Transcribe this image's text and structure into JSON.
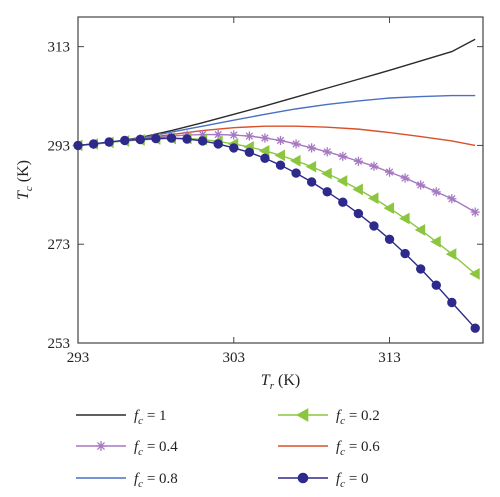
{
  "chart_data": {
    "type": "line",
    "xlabel": {
      "symbol": "T",
      "sub": "r",
      "unit": " (K)"
    },
    "ylabel": {
      "symbol": "T",
      "sub": "c",
      "unit": " (K)"
    },
    "xlim": [
      293,
      319
    ],
    "ylim": [
      253,
      319
    ],
    "xticks": [
      293,
      303,
      313
    ],
    "yticks": [
      253,
      273,
      293,
      313
    ],
    "grid": false,
    "legend_position": "bottom",
    "series": [
      {
        "key": "f1",
        "name_symbol": "f",
        "name_sub": "c",
        "name_value": " = 1",
        "color": "#2b2b2b",
        "marker": "none",
        "x": [
          293,
          295,
          297,
          299,
          301,
          303,
          305,
          307,
          309,
          311,
          313,
          315,
          317,
          318.5
        ],
        "y": [
          293.0,
          293.6,
          294.6,
          296.0,
          297.6,
          299.3,
          301.0,
          302.8,
          304.6,
          306.4,
          308.2,
          310.1,
          312.0,
          314.5
        ]
      },
      {
        "key": "f08",
        "name_symbol": "f",
        "name_sub": "c",
        "name_value": " = 0.8",
        "color": "#4a70c4",
        "marker": "none",
        "x": [
          293,
          295,
          297,
          299,
          301,
          303,
          305,
          307,
          309,
          311,
          313,
          315,
          317,
          318.5
        ],
        "y": [
          293.0,
          293.6,
          294.5,
          295.7,
          296.9,
          298.1,
          299.3,
          300.4,
          301.3,
          302.0,
          302.6,
          302.9,
          303.1,
          303.1
        ]
      },
      {
        "key": "f06",
        "name_symbol": "f",
        "name_sub": "c",
        "name_value": " = 0.6",
        "color": "#d9502a",
        "marker": "none",
        "x": [
          293,
          295,
          297,
          299,
          301,
          303,
          305,
          307,
          309,
          311,
          313,
          315,
          317,
          318.5
        ],
        "y": [
          293.0,
          293.6,
          294.4,
          295.2,
          296.0,
          296.6,
          296.9,
          296.9,
          296.7,
          296.3,
          295.6,
          294.8,
          293.9,
          293.0
        ]
      },
      {
        "key": "f04",
        "name_symbol": "f",
        "name_sub": "c",
        "name_value": " = 0.4",
        "color": "#a678c2",
        "marker": "star",
        "x": [
          293,
          294,
          295,
          296,
          297,
          298,
          299,
          300,
          301,
          302,
          303,
          304,
          305,
          306,
          307,
          308,
          309,
          310,
          311,
          312,
          313,
          314,
          315,
          316,
          317,
          318.5
        ],
        "y": [
          293.0,
          293.2,
          293.6,
          294.0,
          294.3,
          294.6,
          294.9,
          295.1,
          295.2,
          295.2,
          295.1,
          294.9,
          294.5,
          294.0,
          293.3,
          292.5,
          291.7,
          290.8,
          289.8,
          288.8,
          287.6,
          286.4,
          285.0,
          283.6,
          282.2,
          279.5
        ]
      },
      {
        "key": "f02",
        "name_symbol": "f",
        "name_sub": "c",
        "name_value": " = 0.2",
        "color": "#8cc63f",
        "marker": "triangle",
        "x": [
          293,
          294,
          295,
          296,
          297,
          298,
          299,
          300,
          301,
          302,
          303,
          304,
          305,
          306,
          307,
          308,
          309,
          310,
          311,
          312,
          313,
          314,
          315,
          316,
          317,
          318.5
        ],
        "y": [
          293.0,
          293.3,
          293.6,
          293.9,
          294.1,
          294.3,
          294.4,
          294.4,
          294.2,
          293.8,
          293.3,
          292.7,
          291.9,
          291.0,
          289.9,
          288.7,
          287.3,
          285.8,
          284.1,
          282.3,
          280.3,
          278.2,
          275.9,
          273.5,
          271.0,
          267.0
        ]
      },
      {
        "key": "f0",
        "name_symbol": "f",
        "name_sub": "c",
        "name_value": " = 0",
        "color": "#2e2a8c",
        "marker": "circle",
        "x": [
          293,
          294,
          295,
          296,
          297,
          298,
          299,
          300,
          301,
          302,
          303,
          304,
          305,
          306,
          307,
          308,
          309,
          310,
          311,
          312,
          313,
          314,
          315,
          316,
          317,
          318.5
        ],
        "y": [
          293.0,
          293.3,
          293.7,
          294.0,
          294.2,
          294.4,
          294.5,
          294.3,
          293.9,
          293.3,
          292.5,
          291.6,
          290.4,
          289.0,
          287.4,
          285.6,
          283.6,
          281.5,
          279.2,
          276.7,
          274.0,
          271.1,
          268.0,
          264.7,
          261.2,
          256.0
        ]
      }
    ],
    "legend_order": [
      [
        "f1",
        "f02"
      ],
      [
        "f04",
        "f06"
      ],
      [
        "f08",
        "f0"
      ]
    ]
  }
}
